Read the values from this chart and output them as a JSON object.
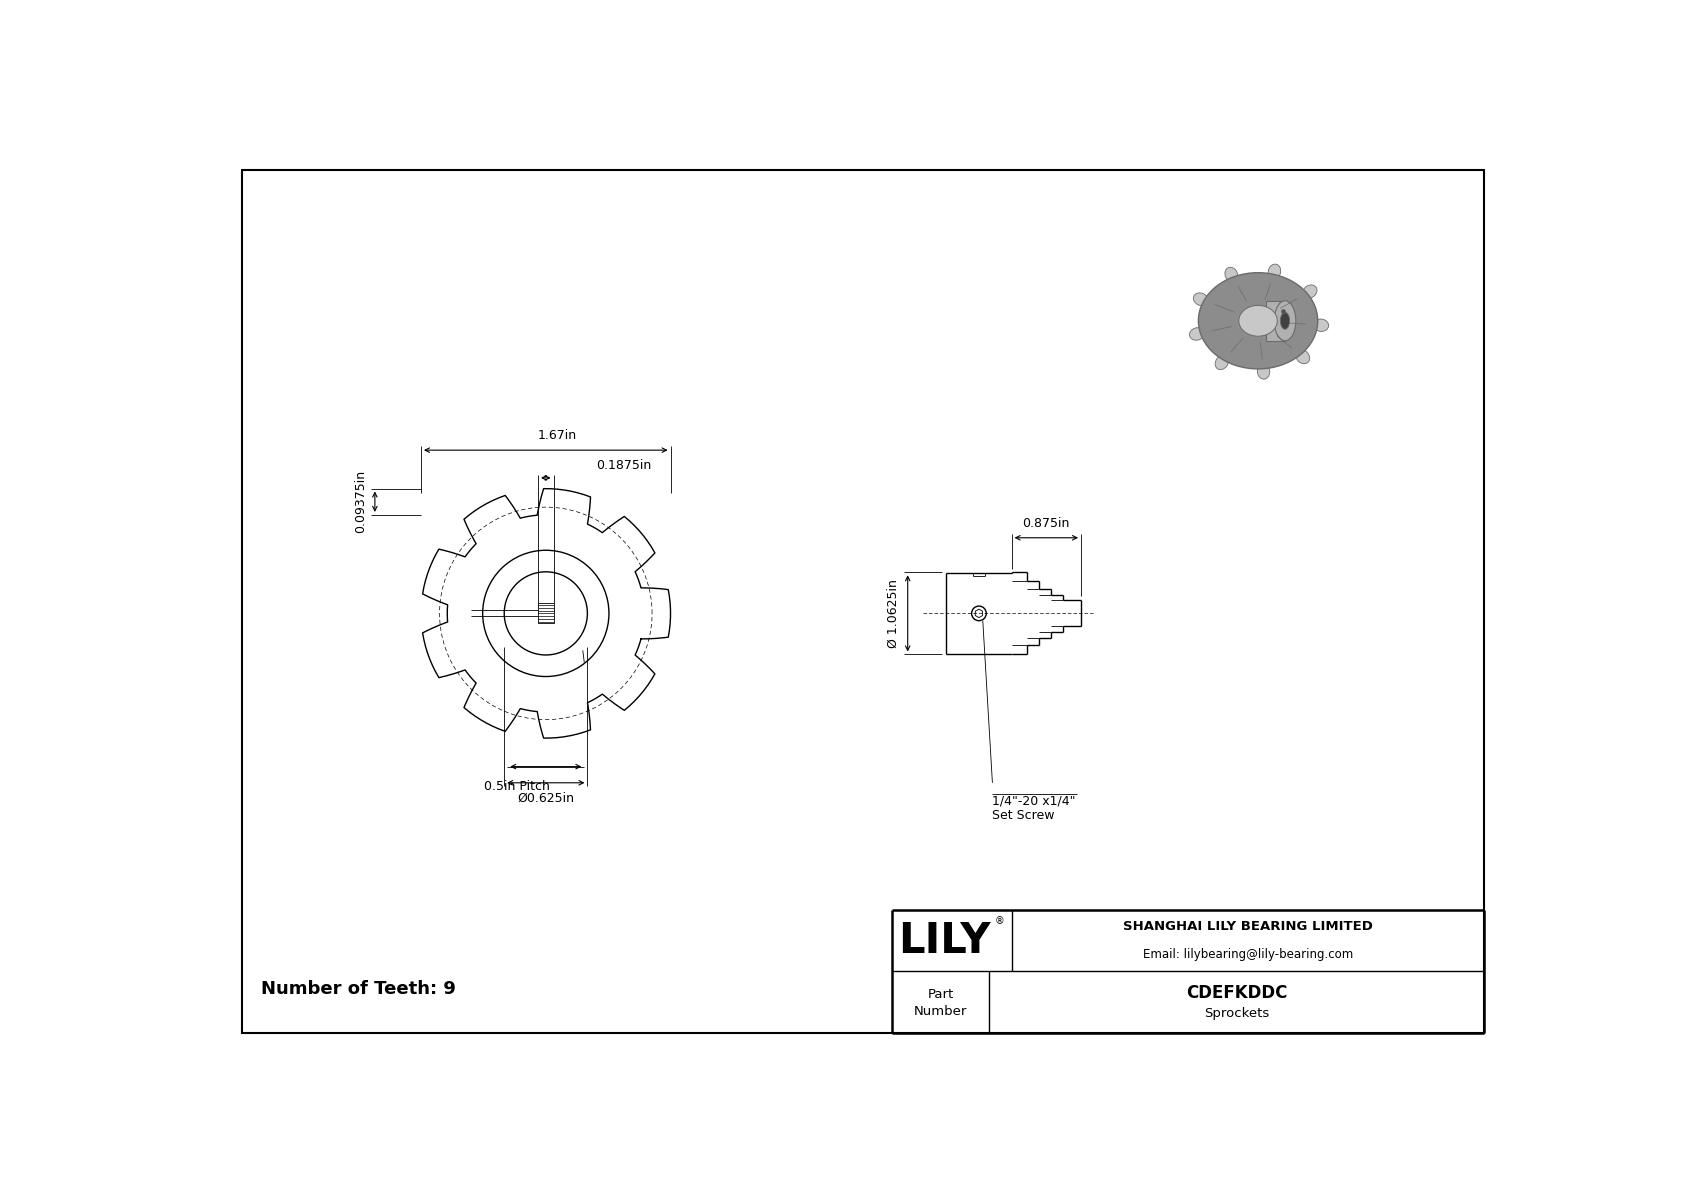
{
  "bg_color": "#ffffff",
  "line_color": "#000000",
  "dim_color": "#000000",
  "title": "CDEFKDDC",
  "subtitle": "Sprockets",
  "company": "SHANGHAI LILY BEARING LIMITED",
  "email": "Email: lilybearing@lily-bearing.com",
  "part_label": "Part\nNumber",
  "num_teeth": "Number of Teeth: 9",
  "dim_167": "1.67in",
  "dim_01875": "0.1875in",
  "dim_009375": "0.09375in",
  "dim_05pitch": "0.5in Pitch",
  "dim_0625": "Ø0.625in",
  "dim_0875": "0.875in",
  "dim_10625": "Ø 1.0625in",
  "dim_setscrew": "1/4\"-20 x1/4\"\nSet Screw",
  "lily_text": "LILY"
}
